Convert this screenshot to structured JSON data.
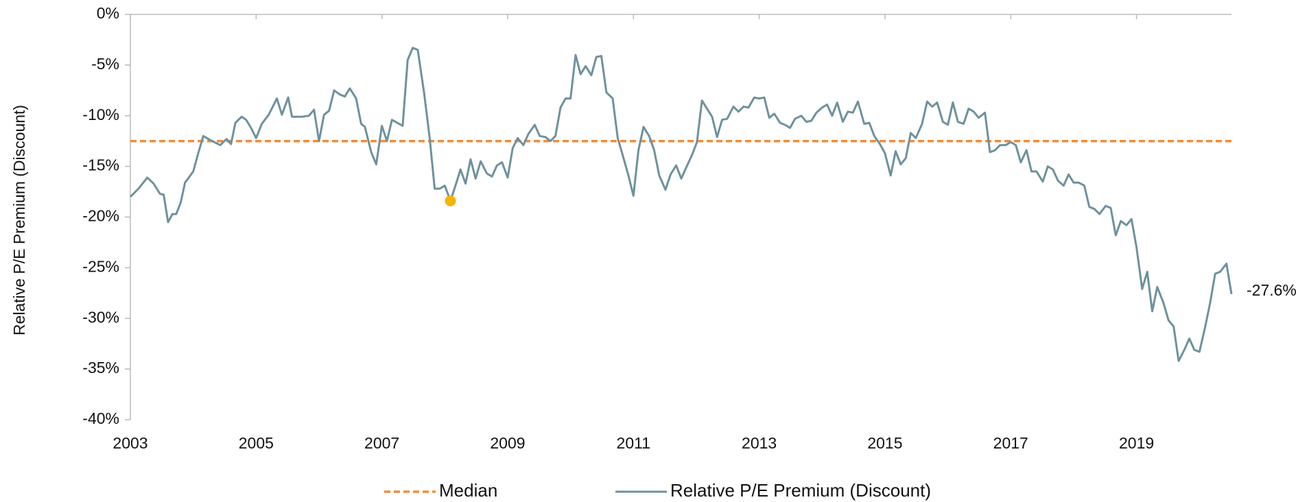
{
  "chart_data": {
    "type": "line",
    "y_label": "Relative P/E Premium (Discount)",
    "xlim": [
      2003,
      2020.51
    ],
    "xticks": [
      2003,
      2005,
      2007,
      2009,
      2011,
      2013,
      2015,
      2017,
      2019
    ],
    "ylim": [
      -40,
      0
    ],
    "yticks": [
      {
        "value": 0,
        "label": "0%"
      },
      {
        "value": -5,
        "label": "-5%"
      },
      {
        "value": -10,
        "label": "-10%"
      },
      {
        "value": -15,
        "label": "-15%"
      },
      {
        "value": -20,
        "label": "-20%"
      },
      {
        "value": -25,
        "label": "-25%"
      },
      {
        "value": -30,
        "label": "-30%"
      },
      {
        "value": -35,
        "label": "-35%"
      },
      {
        "value": -40,
        "label": "-40%"
      }
    ],
    "legend": "bottom",
    "series": [
      {
        "name": "Median",
        "color": "#f28c38",
        "dashed": true,
        "x": [
          2003,
          2020.51
        ],
        "values": [
          -12.5,
          -12.5
        ]
      },
      {
        "name": "Relative P/E Premium (Discount)",
        "color": "#6e919c",
        "dashed": false,
        "x": [
          2003.0,
          2003.13,
          2003.27,
          2003.37,
          2003.47,
          2003.53,
          2003.6,
          2003.67,
          2003.73,
          2003.8,
          2003.87,
          2004.0,
          2004.07,
          2004.16,
          2004.27,
          2004.43,
          2004.53,
          2004.6,
          2004.67,
          2004.77,
          2004.84,
          2004.91,
          2005.0,
          2005.09,
          2005.2,
          2005.33,
          2005.41,
          2005.51,
          2005.57,
          2005.73,
          2005.84,
          2005.92,
          2006.0,
          2006.08,
          2006.16,
          2006.24,
          2006.33,
          2006.41,
          2006.49,
          2006.59,
          2006.67,
          2006.73,
          2006.83,
          2006.91,
          2007.0,
          2007.08,
          2007.16,
          2007.33,
          2007.41,
          2007.49,
          2007.57,
          2007.67,
          2007.76,
          2007.84,
          2007.92,
          2008.0,
          2008.09,
          2008.17,
          2008.25,
          2008.33,
          2008.41,
          2008.49,
          2008.57,
          2008.67,
          2008.75,
          2008.83,
          2008.91,
          2009.0,
          2009.08,
          2009.16,
          2009.25,
          2009.33,
          2009.43,
          2009.51,
          2009.6,
          2009.68,
          2009.76,
          2009.84,
          2009.92,
          2010.0,
          2010.08,
          2010.16,
          2010.24,
          2010.33,
          2010.41,
          2010.49,
          2010.57,
          2010.67,
          2010.75,
          2010.83,
          2010.92,
          2011.0,
          2011.08,
          2011.16,
          2011.25,
          2011.33,
          2011.41,
          2011.51,
          2011.59,
          2011.68,
          2011.76,
          2011.84,
          2011.93,
          2012.01,
          2012.09,
          2012.17,
          2012.25,
          2012.33,
          2012.41,
          2012.49,
          2012.59,
          2012.67,
          2012.75,
          2012.83,
          2012.92,
          2013.0,
          2013.08,
          2013.16,
          2013.24,
          2013.33,
          2013.41,
          2013.49,
          2013.57,
          2013.67,
          2013.75,
          2013.83,
          2013.91,
          2014.0,
          2014.08,
          2014.16,
          2014.24,
          2014.33,
          2014.41,
          2014.49,
          2014.57,
          2014.67,
          2014.75,
          2014.83,
          2014.92,
          2015.0,
          2015.09,
          2015.17,
          2015.25,
          2015.33,
          2015.41,
          2015.49,
          2015.59,
          2015.67,
          2015.75,
          2015.83,
          2015.92,
          2016.0,
          2016.08,
          2016.16,
          2016.25,
          2016.33,
          2016.41,
          2016.49,
          2016.59,
          2016.67,
          2016.75,
          2016.83,
          2016.92,
          2017.0,
          2017.08,
          2017.16,
          2017.25,
          2017.33,
          2017.41,
          2017.51,
          2017.59,
          2017.67,
          2017.75,
          2017.84,
          2017.92,
          2018.0,
          2018.08,
          2018.17,
          2018.25,
          2018.33,
          2018.41,
          2018.51,
          2018.59,
          2018.67,
          2018.75,
          2018.84,
          2018.92,
          2019.0,
          2019.09,
          2019.17,
          2019.25,
          2019.33,
          2019.43,
          2019.51,
          2019.59,
          2019.67,
          2019.76,
          2019.84,
          2019.92,
          2020.0,
          2020.09,
          2020.17,
          2020.25,
          2020.33,
          2020.43,
          2020.51
        ],
        "values": [
          -18.0,
          -17.2,
          -16.1,
          -16.7,
          -17.7,
          -17.8,
          -20.5,
          -19.7,
          -19.7,
          -18.6,
          -16.6,
          -15.5,
          -13.9,
          -12.0,
          -12.4,
          -12.9,
          -12.3,
          -12.8,
          -10.7,
          -10.1,
          -10.4,
          -11.1,
          -12.2,
          -10.8,
          -9.9,
          -8.3,
          -9.9,
          -8.2,
          -10.1,
          -10.1,
          -10.0,
          -9.4,
          -12.5,
          -9.9,
          -9.5,
          -7.5,
          -7.9,
          -8.1,
          -7.3,
          -8.3,
          -10.8,
          -11.1,
          -13.6,
          -14.8,
          -11.0,
          -12.5,
          -10.4,
          -11.0,
          -4.5,
          -3.3,
          -3.5,
          -7.7,
          -12.2,
          -17.2,
          -17.2,
          -16.9,
          -18.4,
          -16.9,
          -15.3,
          -16.7,
          -14.3,
          -16.2,
          -14.5,
          -15.7,
          -16.0,
          -14.9,
          -14.6,
          -16.1,
          -13.2,
          -12.2,
          -12.9,
          -11.8,
          -10.9,
          -12.0,
          -12.1,
          -12.5,
          -12.0,
          -9.2,
          -8.3,
          -8.3,
          -4.0,
          -5.9,
          -5.1,
          -6.0,
          -4.2,
          -4.1,
          -7.7,
          -8.3,
          -12.2,
          -13.9,
          -15.9,
          -17.9,
          -13.4,
          -11.1,
          -12.0,
          -13.4,
          -15.9,
          -17.3,
          -15.8,
          -14.9,
          -16.2,
          -15.1,
          -13.9,
          -12.6,
          -8.5,
          -9.3,
          -10.1,
          -12.1,
          -10.4,
          -10.3,
          -9.1,
          -9.6,
          -9.1,
          -9.2,
          -8.2,
          -8.3,
          -8.2,
          -10.2,
          -9.8,
          -10.7,
          -10.9,
          -11.2,
          -10.3,
          -10.0,
          -10.6,
          -10.5,
          -9.7,
          -9.2,
          -8.9,
          -10.0,
          -8.7,
          -10.6,
          -9.6,
          -9.7,
          -8.6,
          -10.8,
          -10.7,
          -12.0,
          -12.8,
          -13.7,
          -15.9,
          -13.5,
          -14.8,
          -14.2,
          -11.7,
          -12.2,
          -10.8,
          -8.6,
          -9.1,
          -8.7,
          -10.6,
          -10.9,
          -8.7,
          -10.6,
          -10.8,
          -9.3,
          -9.6,
          -10.2,
          -9.7,
          -13.6,
          -13.4,
          -12.9,
          -12.9,
          -12.6,
          -12.9,
          -14.6,
          -13.4,
          -15.5,
          -15.5,
          -16.5,
          -15.0,
          -15.3,
          -16.4,
          -16.9,
          -15.8,
          -16.6,
          -16.6,
          -16.9,
          -19.0,
          -19.2,
          -19.7,
          -18.9,
          -19.1,
          -21.8,
          -20.4,
          -20.8,
          -20.2,
          -23.0,
          -27.1,
          -25.4,
          -29.3,
          -26.9,
          -28.5,
          -30.2,
          -30.8,
          -34.2,
          -33.1,
          -32.0,
          -33.1,
          -33.3,
          -30.9,
          -28.5,
          -25.6,
          -25.4,
          -24.6,
          -27.6
        ]
      }
    ],
    "highlight": {
      "x": 2008.09,
      "y": -18.4,
      "color": "#f7b500"
    },
    "annotation": {
      "text": "-27.6%",
      "x": 2020.51,
      "y": -27.6
    }
  }
}
